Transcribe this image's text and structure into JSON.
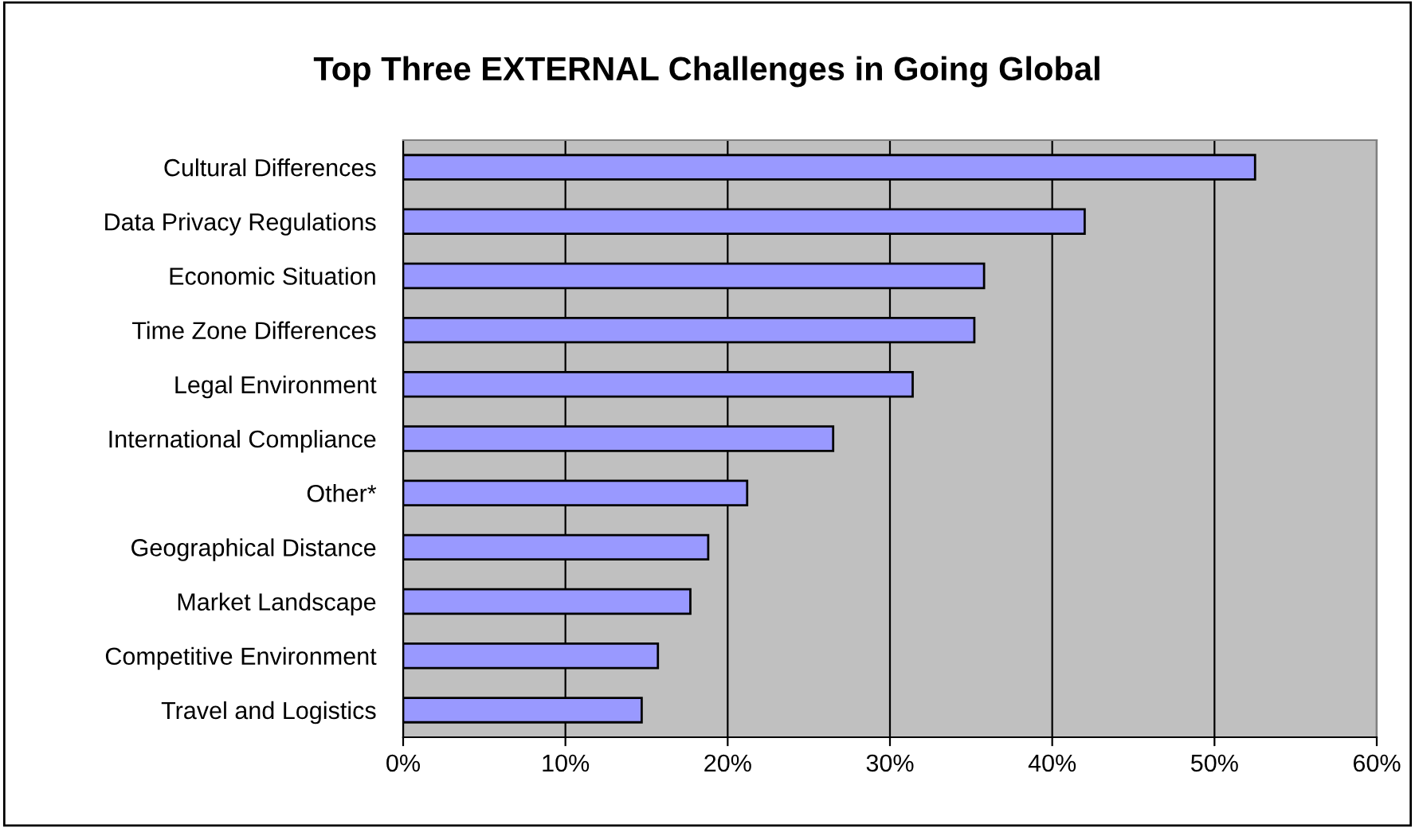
{
  "chart_data": {
    "type": "bar",
    "orientation": "horizontal",
    "title": "Top Three EXTERNAL Challenges in Going Global",
    "categories": [
      "Cultural Differences",
      "Data Privacy Regulations",
      "Economic Situation",
      "Time Zone Differences",
      "Legal Environment",
      "International Compliance",
      "Other*",
      "Geographical Distance",
      "Market Landscape",
      "Competitive Environment",
      "Travel and Logistics"
    ],
    "values": [
      52.5,
      42.0,
      35.8,
      35.2,
      31.4,
      26.5,
      21.2,
      18.8,
      17.7,
      15.7,
      14.7
    ],
    "color": "#9999ff",
    "xlim": [
      0,
      60
    ],
    "xticks": [
      {
        "value": 0,
        "label": "0%"
      },
      {
        "value": 10,
        "label": "10%"
      },
      {
        "value": 20,
        "label": "20%"
      },
      {
        "value": 30,
        "label": "30%"
      },
      {
        "value": 40,
        "label": "40%"
      },
      {
        "value": 50,
        "label": "50%"
      },
      {
        "value": 60,
        "label": "60%"
      }
    ],
    "grid": "x",
    "legend": false
  }
}
